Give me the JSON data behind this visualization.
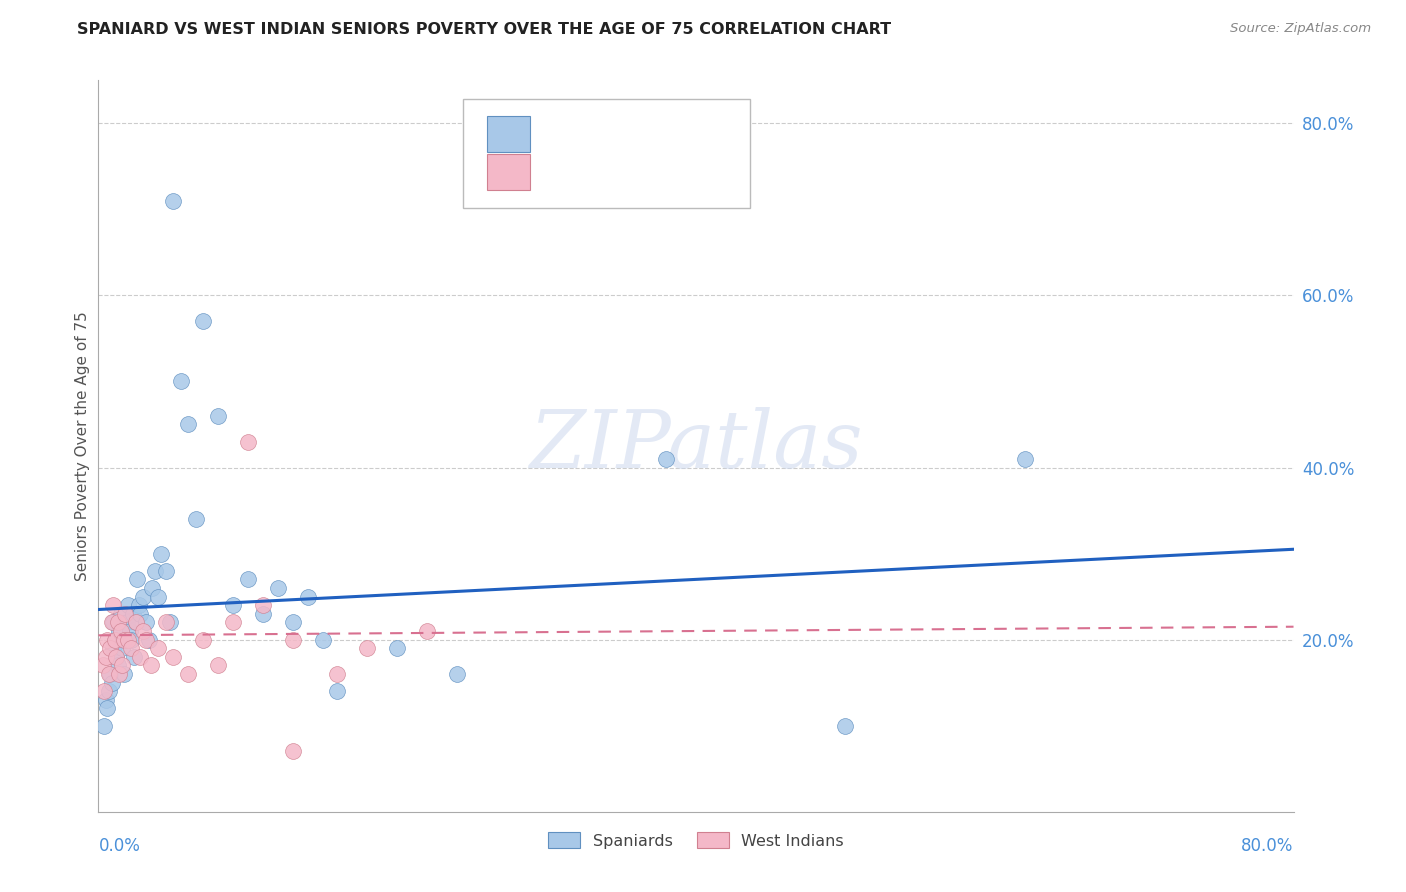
{
  "title": "SPANIARD VS WEST INDIAN SENIORS POVERTY OVER THE AGE OF 75 CORRELATION CHART",
  "source": "Source: ZipAtlas.com",
  "ylabel": "Seniors Poverty Over the Age of 75",
  "xlim": [
    0.0,
    0.8
  ],
  "ylim": [
    0.0,
    0.85
  ],
  "ytick_values": [
    0.2,
    0.4,
    0.6,
    0.8
  ],
  "ytick_labels": [
    "20.0%",
    "40.0%",
    "60.0%",
    "80.0%"
  ],
  "blue_scatter_color": "#a8c8e8",
  "blue_edge_color": "#6090c0",
  "pink_scatter_color": "#f4b8c8",
  "pink_edge_color": "#d08090",
  "blue_line_color": "#2060c0",
  "pink_line_color": "#d87090",
  "axis_tick_color": "#4a90d9",
  "grid_color": "#cccccc",
  "title_color": "#222222",
  "source_color": "#888888",
  "ylabel_color": "#555555",
  "spaniards_x": [
    0.004,
    0.005,
    0.006,
    0.007,
    0.008,
    0.009,
    0.01,
    0.01,
    0.011,
    0.012,
    0.013,
    0.014,
    0.015,
    0.016,
    0.017,
    0.018,
    0.019,
    0.02,
    0.021,
    0.022,
    0.023,
    0.024,
    0.025,
    0.026,
    0.027,
    0.028,
    0.03,
    0.032,
    0.034,
    0.036,
    0.038,
    0.04,
    0.042,
    0.045,
    0.048,
    0.05,
    0.055,
    0.06,
    0.065,
    0.07,
    0.08,
    0.09,
    0.1,
    0.11,
    0.12,
    0.13,
    0.14,
    0.15,
    0.16,
    0.2,
    0.24,
    0.38,
    0.5,
    0.62
  ],
  "spaniards_y": [
    0.1,
    0.13,
    0.12,
    0.14,
    0.16,
    0.15,
    0.19,
    0.22,
    0.2,
    0.18,
    0.17,
    0.21,
    0.23,
    0.19,
    0.16,
    0.2,
    0.22,
    0.24,
    0.21,
    0.2,
    0.23,
    0.18,
    0.22,
    0.27,
    0.24,
    0.23,
    0.25,
    0.22,
    0.2,
    0.26,
    0.28,
    0.25,
    0.3,
    0.28,
    0.22,
    0.71,
    0.5,
    0.45,
    0.34,
    0.57,
    0.46,
    0.24,
    0.27,
    0.23,
    0.26,
    0.22,
    0.25,
    0.2,
    0.14,
    0.19,
    0.16,
    0.41,
    0.1,
    0.41
  ],
  "west_indians_x": [
    0.003,
    0.004,
    0.005,
    0.006,
    0.007,
    0.008,
    0.009,
    0.01,
    0.011,
    0.012,
    0.013,
    0.014,
    0.015,
    0.016,
    0.017,
    0.018,
    0.02,
    0.022,
    0.025,
    0.028,
    0.03,
    0.032,
    0.035,
    0.04,
    0.045,
    0.05,
    0.06,
    0.07,
    0.08,
    0.09,
    0.1,
    0.11,
    0.13,
    0.16,
    0.18,
    0.22,
    0.13
  ],
  "west_indians_y": [
    0.17,
    0.14,
    0.18,
    0.2,
    0.16,
    0.19,
    0.22,
    0.24,
    0.2,
    0.18,
    0.22,
    0.16,
    0.21,
    0.17,
    0.2,
    0.23,
    0.2,
    0.19,
    0.22,
    0.18,
    0.21,
    0.2,
    0.17,
    0.19,
    0.22,
    0.18,
    0.16,
    0.2,
    0.17,
    0.22,
    0.43,
    0.24,
    0.2,
    0.16,
    0.19,
    0.21,
    0.07
  ],
  "blue_line_x0": 0.0,
  "blue_line_y0": 0.235,
  "blue_line_x1": 0.8,
  "blue_line_y1": 0.305,
  "pink_line_x0": 0.0,
  "pink_line_y0": 0.205,
  "pink_line_x1": 0.8,
  "pink_line_y1": 0.215
}
